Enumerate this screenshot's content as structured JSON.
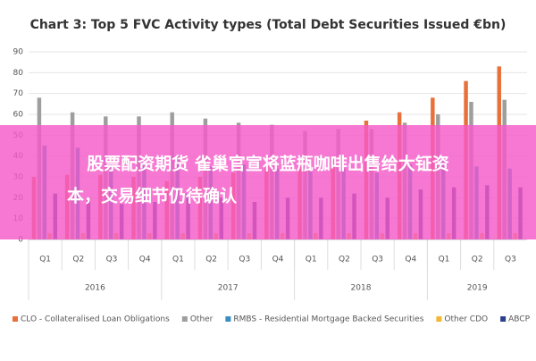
{
  "chart_data": {
    "type": "bar",
    "title": "Chart 3: Top 5 FVC Activity types (Total Debt Securities Issued €bn)",
    "categories": [
      "Q1",
      "Q2",
      "Q3",
      "Q4",
      "Q1",
      "Q2",
      "Q3",
      "Q4",
      "Q1",
      "Q2",
      "Q3",
      "Q4",
      "Q1",
      "Q2",
      "Q3"
    ],
    "groups": [
      "2016",
      "2017",
      "2018",
      "2019"
    ],
    "series": [
      {
        "name": "CLO - Collateralised Loan Obligations",
        "color": "#e8703a",
        "values": [
          30,
          31,
          31,
          30,
          28,
          30,
          32,
          35,
          35,
          38,
          57,
          61,
          68,
          76,
          83
        ]
      },
      {
        "name": "Other",
        "color": "#9e9e9e",
        "values": [
          68,
          61,
          59,
          59,
          61,
          58,
          56,
          55,
          52,
          53,
          53,
          56,
          60,
          66,
          67
        ]
      },
      {
        "name": "RMBS - Residential Mortgage Backed Securities",
        "color": "#3a8fc2",
        "values": [
          45,
          44,
          36,
          38,
          40,
          35,
          36,
          34,
          33,
          34,
          32,
          36,
          38,
          35,
          34
        ]
      },
      {
        "name": "Other CDO",
        "color": "#f2b632",
        "values": [
          3,
          3,
          3,
          3,
          3,
          3,
          3,
          3,
          3,
          3,
          3,
          3,
          3,
          3,
          3
        ]
      },
      {
        "name": "ABCP",
        "color": "#2c3e8c",
        "values": [
          22,
          20,
          17,
          18,
          22,
          20,
          18,
          20,
          20,
          22,
          20,
          24,
          25,
          26,
          25
        ]
      }
    ],
    "ylim": [
      0,
      90
    ],
    "yticks": [
      0,
      10,
      20,
      30,
      40,
      50,
      60,
      70,
      80,
      90
    ],
    "grid": true
  },
  "banner": {
    "lines": [
      "股票配资期货 雀巢官宣将蓝瓶咖啡出售给大钲资",
      "本，交易细节仍待确认"
    ]
  }
}
